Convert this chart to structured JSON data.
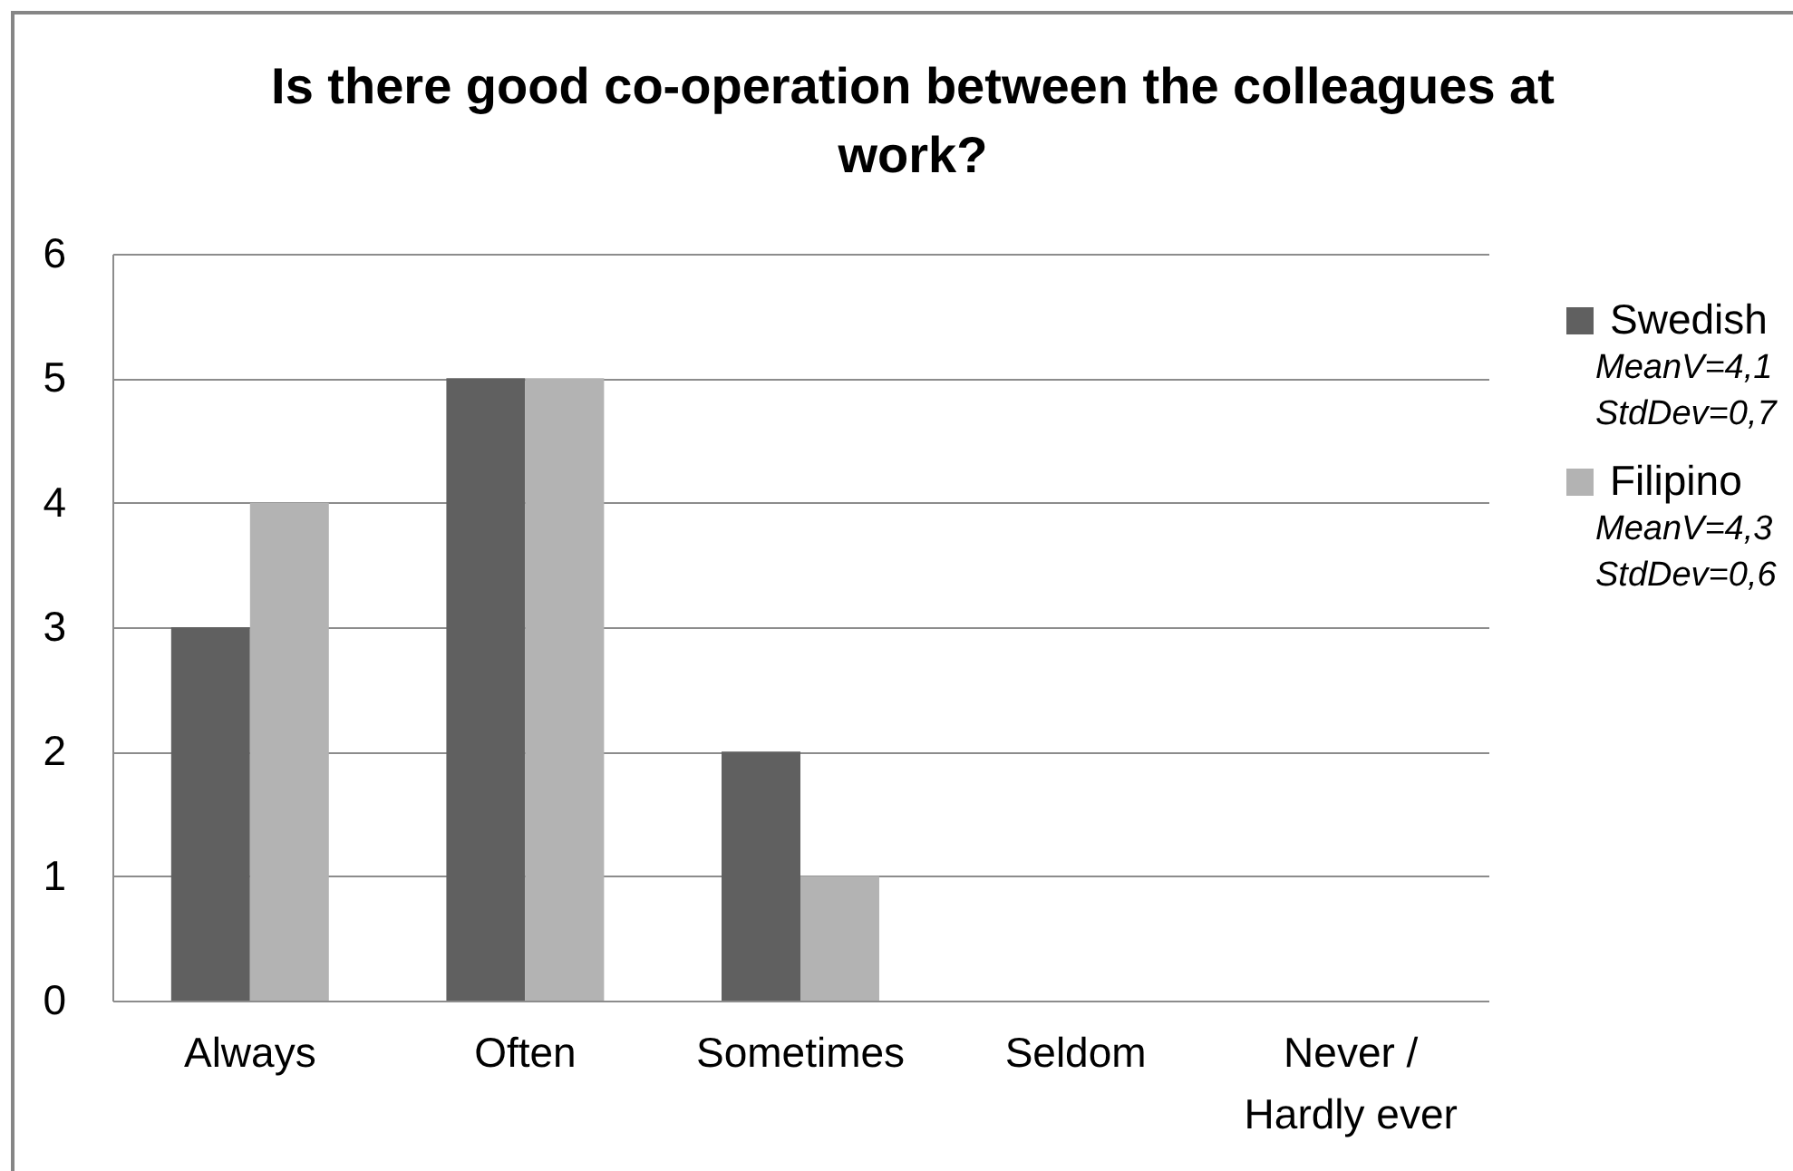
{
  "chart_data": {
    "type": "bar",
    "title": "Is there good co-operation between the colleagues at work?",
    "categories": [
      "Always",
      "Often",
      "Sometimes",
      "Seldom",
      "Never / Hardly ever"
    ],
    "series": [
      {
        "name": "Swedish",
        "color": "#606060",
        "values": [
          3,
          5,
          2,
          0,
          0
        ]
      },
      {
        "name": "Filipino",
        "color": "#b3b3b3",
        "values": [
          4,
          5,
          1,
          0,
          0
        ]
      }
    ],
    "ylim": [
      0,
      6
    ],
    "yticks": [
      0,
      1,
      2,
      3,
      4,
      5,
      6
    ],
    "grid": "y",
    "legend": "right",
    "annotations": [
      "MeanV=4,1\nStdDev=0,7",
      "MeanV=4,3\nStdDev=0,6"
    ]
  }
}
